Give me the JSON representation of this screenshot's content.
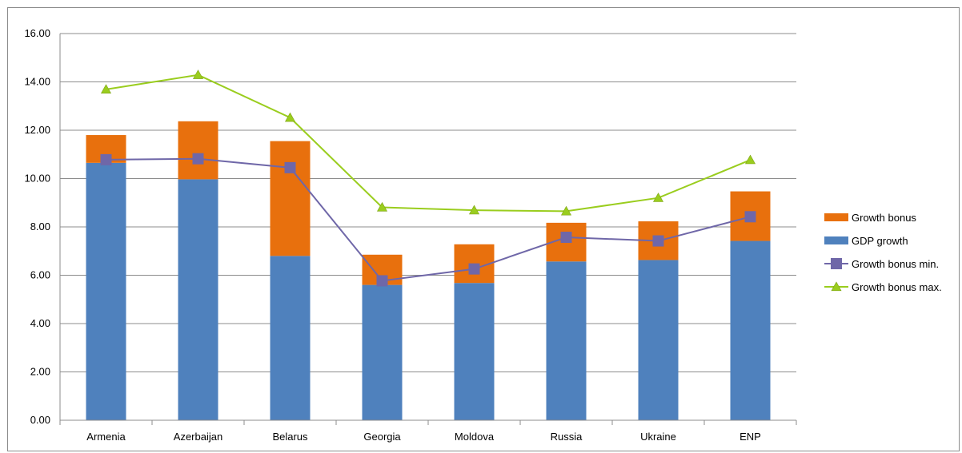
{
  "chart_data": {
    "type": "bar",
    "stacked": true,
    "categories": [
      "Armenia",
      "Azerbaijan",
      "Belarus",
      "Georgia",
      "Moldova",
      "Russia",
      "Ukraine",
      "ENP"
    ],
    "series": [
      {
        "name": "Growth bonus",
        "kind": "bar",
        "color": "#e8700d",
        "values": [
          1.15,
          2.4,
          4.75,
          1.25,
          1.6,
          1.6,
          1.6,
          2.05
        ]
      },
      {
        "name": "GDP growth",
        "kind": "bar",
        "color": "#4f81bd",
        "values": [
          10.65,
          9.97,
          6.8,
          5.6,
          5.68,
          6.57,
          6.63,
          7.42
        ]
      },
      {
        "name": "Growth bonus min.",
        "kind": "line",
        "color": "#6f67a8",
        "marker": "square",
        "values": [
          10.78,
          10.82,
          10.45,
          5.77,
          6.26,
          7.57,
          7.42,
          8.42
        ]
      },
      {
        "name": "Growth bonus max.",
        "kind": "line",
        "color": "#9acd1e",
        "marker": "triangle",
        "values": [
          13.69,
          14.29,
          12.52,
          8.81,
          8.69,
          8.65,
          9.2,
          10.77
        ]
      }
    ],
    "yticks": [
      "0.00",
      "2.00",
      "4.00",
      "6.00",
      "8.00",
      "10.00",
      "12.00",
      "14.00",
      "16.00"
    ],
    "ylim": [
      0,
      16
    ],
    "grid": true,
    "legend_position": "right"
  }
}
